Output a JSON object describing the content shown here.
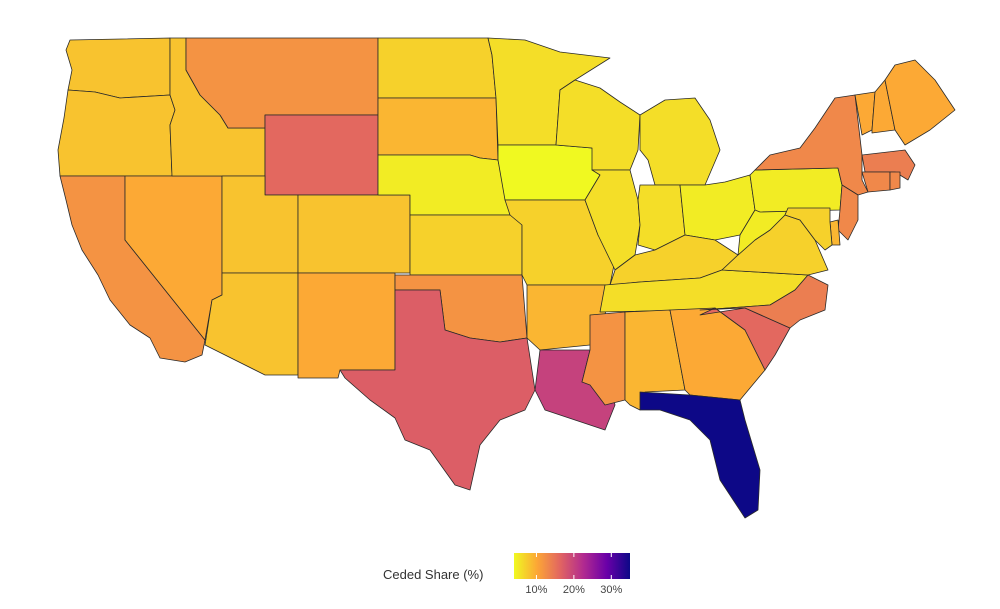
{
  "legend": {
    "title": "Ceded Share (%)",
    "ticks": [
      "10%",
      "20%",
      "30%"
    ],
    "tick_values": [
      10,
      20,
      30
    ],
    "min": 4,
    "max": 35,
    "colors": [
      "#f0f921",
      "#fca636",
      "#e16462",
      "#b12a90",
      "#6a00a8",
      "#0d0887"
    ]
  },
  "states": [
    {
      "id": "WA",
      "value": 8
    },
    {
      "id": "OR",
      "value": 8
    },
    {
      "id": "CA",
      "value": 12
    },
    {
      "id": "NV",
      "value": 10
    },
    {
      "id": "ID",
      "value": 8
    },
    {
      "id": "MT",
      "value": 12
    },
    {
      "id": "WY",
      "value": 16
    },
    {
      "id": "UT",
      "value": 8
    },
    {
      "id": "AZ",
      "value": 8
    },
    {
      "id": "CO",
      "value": 8
    },
    {
      "id": "NM",
      "value": 10
    },
    {
      "id": "ND",
      "value": 7
    },
    {
      "id": "SD",
      "value": 9
    },
    {
      "id": "NE",
      "value": 5
    },
    {
      "id": "KS",
      "value": 7
    },
    {
      "id": "OK",
      "value": 12
    },
    {
      "id": "TX",
      "value": 17
    },
    {
      "id": "MN",
      "value": 6
    },
    {
      "id": "IA",
      "value": 4
    },
    {
      "id": "MO",
      "value": 7
    },
    {
      "id": "AR",
      "value": 9
    },
    {
      "id": "LA",
      "value": 20
    },
    {
      "id": "WI",
      "value": 6
    },
    {
      "id": "IL",
      "value": 6
    },
    {
      "id": "MI",
      "value": 6
    },
    {
      "id": "IN",
      "value": 6
    },
    {
      "id": "OH",
      "value": 5
    },
    {
      "id": "KY",
      "value": 7
    },
    {
      "id": "TN",
      "value": 6
    },
    {
      "id": "MS",
      "value": 12
    },
    {
      "id": "AL",
      "value": 9
    },
    {
      "id": "GA",
      "value": 10
    },
    {
      "id": "FL",
      "value": 35
    },
    {
      "id": "SC",
      "value": 16
    },
    {
      "id": "NC",
      "value": 14
    },
    {
      "id": "VA",
      "value": 7
    },
    {
      "id": "WV",
      "value": 5
    },
    {
      "id": "PA",
      "value": 5
    },
    {
      "id": "NY",
      "value": 13
    },
    {
      "id": "VT",
      "value": 10
    },
    {
      "id": "NH",
      "value": 10
    },
    {
      "id": "ME",
      "value": 10
    },
    {
      "id": "MA",
      "value": 14
    },
    {
      "id": "CT",
      "value": 13
    },
    {
      "id": "RI",
      "value": 13
    },
    {
      "id": "NJ",
      "value": 13
    },
    {
      "id": "DE",
      "value": 9
    },
    {
      "id": "MD",
      "value": 7
    }
  ]
}
